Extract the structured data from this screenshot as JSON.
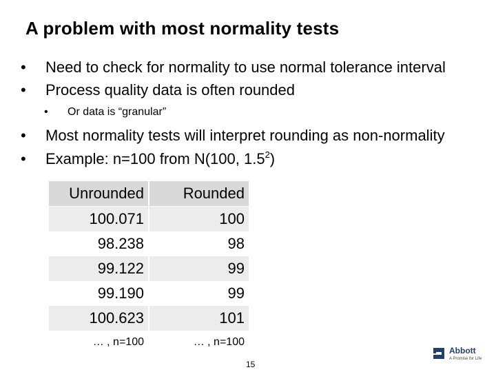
{
  "slide": {
    "title": "A problem with most normality tests",
    "bullets": [
      {
        "marker": "•",
        "text": "Need to check for normality to use normal tolerance interval"
      },
      {
        "marker": "•",
        "text": "Process quality data is often rounded"
      },
      {
        "marker": "•",
        "text": "Or data is “granular”"
      },
      {
        "marker": "•",
        "text": "Most normality tests will interpret rounding as non-normality"
      },
      {
        "marker": "•",
        "text_prefix": "Example: n=100 from N(100, 1.5",
        "superscript": "2",
        "text_suffix": ")"
      }
    ]
  },
  "table": {
    "headers": [
      "Unrounded",
      "Rounded"
    ],
    "rows": [
      [
        "100.071",
        "100"
      ],
      [
        "98.238",
        "98"
      ],
      [
        "99.122",
        "99"
      ],
      [
        "99.190",
        "99"
      ],
      [
        "100.623",
        "101"
      ],
      [
        "… , n=100",
        "… , n=100"
      ]
    ]
  },
  "footer": {
    "page_number": "15",
    "logo_name": "Abbott",
    "logo_tagline": "A Promise for Life"
  },
  "colors": {
    "header_fill": "#d9d9d9",
    "row_shade": "#ececec",
    "brand": "#1f3f74"
  }
}
